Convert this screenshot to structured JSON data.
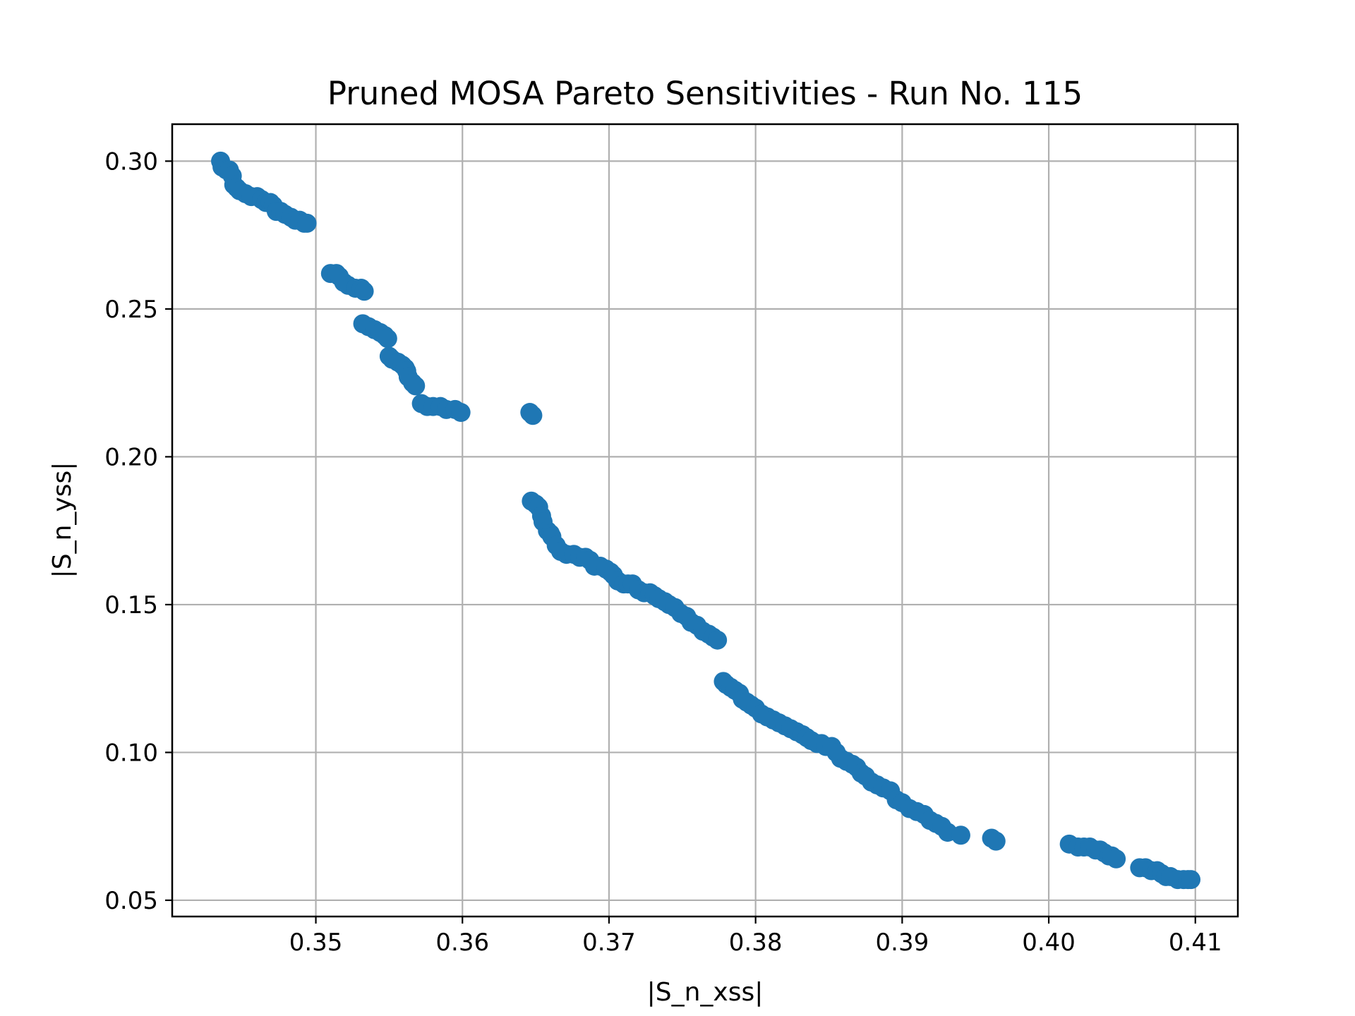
{
  "chart_data": {
    "type": "scatter",
    "title": "Pruned MOSA Pareto Sensitivities - Run No. 115",
    "xlabel": "|S_n_xss|",
    "ylabel": "|S_n_yss|",
    "xlim": [
      0.3402,
      0.4129
    ],
    "ylim": [
      0.0445,
      0.3125
    ],
    "xticks": [
      0.35,
      0.36,
      0.37,
      0.38,
      0.39,
      0.4,
      0.41
    ],
    "xtick_labels": [
      "0.35",
      "0.36",
      "0.37",
      "0.38",
      "0.39",
      "0.40",
      "0.41"
    ],
    "yticks": [
      0.05,
      0.1,
      0.15,
      0.2,
      0.25,
      0.3
    ],
    "ytick_labels": [
      "0.05",
      "0.10",
      "0.15",
      "0.20",
      "0.25",
      "0.30"
    ],
    "grid": true,
    "marker_color": "#1f77b4",
    "series": [
      {
        "x": [
          0.3435,
          0.3436,
          0.3439,
          0.3441,
          0.3443,
          0.3444,
          0.3446,
          0.3448,
          0.3452,
          0.3456,
          0.346,
          0.3463,
          0.3466,
          0.3469,
          0.3471,
          0.3473,
          0.3476,
          0.3479,
          0.3483,
          0.3486,
          0.3489,
          0.3492,
          0.3494,
          0.351,
          0.3514,
          0.3516,
          0.3519,
          0.3522,
          0.3527,
          0.3531,
          0.3533,
          0.3532,
          0.3536,
          0.354,
          0.3544,
          0.3547,
          0.3549,
          0.355,
          0.3552,
          0.3556,
          0.3559,
          0.3561,
          0.3562,
          0.3563,
          0.3566,
          0.3568,
          0.3572,
          0.3576,
          0.358,
          0.3585,
          0.3589,
          0.3595,
          0.3599,
          0.3646,
          0.3648,
          0.3647,
          0.365,
          0.3652,
          0.3654,
          0.3655,
          0.3658,
          0.366,
          0.3661,
          0.3664,
          0.3667,
          0.3671,
          0.3676,
          0.368,
          0.3684,
          0.3687,
          0.369,
          0.3694,
          0.3698,
          0.3701,
          0.3703,
          0.3706,
          0.371,
          0.3713,
          0.3716,
          0.372,
          0.3724,
          0.3728,
          0.3731,
          0.3734,
          0.3738,
          0.3741,
          0.3745,
          0.3749,
          0.3753,
          0.3756,
          0.376,
          0.3764,
          0.3768,
          0.3771,
          0.3774,
          0.3778,
          0.378,
          0.3783,
          0.3786,
          0.3789,
          0.3791,
          0.3794,
          0.3797,
          0.38,
          0.3804,
          0.3808,
          0.3812,
          0.3816,
          0.382,
          0.3824,
          0.3828,
          0.3832,
          0.3835,
          0.3838,
          0.3842,
          0.3845,
          0.3848,
          0.3852,
          0.3855,
          0.3858,
          0.3862,
          0.3866,
          0.3869,
          0.3872,
          0.3875,
          0.3879,
          0.3883,
          0.3887,
          0.3892,
          0.3896,
          0.39,
          0.3905,
          0.391,
          0.3915,
          0.3919,
          0.3923,
          0.3927,
          0.3931,
          0.394,
          0.3961,
          0.3964,
          0.4014,
          0.402,
          0.4024,
          0.4028,
          0.4032,
          0.4035,
          0.4038,
          0.4041,
          0.4043,
          0.4046,
          0.4062,
          0.4066,
          0.407,
          0.4074,
          0.4077,
          0.408,
          0.4083,
          0.4088,
          0.4092,
          0.4095,
          0.4097
        ]
      },
      {
        "y": [
          0.3,
          0.298,
          0.297,
          0.297,
          0.295,
          0.292,
          0.291,
          0.29,
          0.289,
          0.288,
          0.288,
          0.287,
          0.286,
          0.286,
          0.285,
          0.283,
          0.283,
          0.282,
          0.281,
          0.28,
          0.28,
          0.279,
          0.279,
          0.262,
          0.262,
          0.261,
          0.259,
          0.258,
          0.257,
          0.257,
          0.256,
          0.245,
          0.244,
          0.243,
          0.242,
          0.241,
          0.24,
          0.234,
          0.233,
          0.232,
          0.231,
          0.23,
          0.229,
          0.227,
          0.225,
          0.224,
          0.218,
          0.217,
          0.217,
          0.217,
          0.216,
          0.216,
          0.215,
          0.215,
          0.214,
          0.185,
          0.184,
          0.183,
          0.18,
          0.178,
          0.175,
          0.174,
          0.173,
          0.17,
          0.168,
          0.167,
          0.167,
          0.166,
          0.166,
          0.165,
          0.163,
          0.163,
          0.162,
          0.161,
          0.16,
          0.158,
          0.157,
          0.157,
          0.157,
          0.155,
          0.154,
          0.154,
          0.153,
          0.152,
          0.151,
          0.15,
          0.149,
          0.147,
          0.146,
          0.144,
          0.143,
          0.141,
          0.14,
          0.139,
          0.138,
          0.124,
          0.123,
          0.122,
          0.121,
          0.12,
          0.118,
          0.117,
          0.116,
          0.115,
          0.113,
          0.112,
          0.111,
          0.11,
          0.109,
          0.108,
          0.107,
          0.106,
          0.105,
          0.104,
          0.103,
          0.103,
          0.102,
          0.102,
          0.1,
          0.098,
          0.097,
          0.096,
          0.095,
          0.093,
          0.092,
          0.09,
          0.089,
          0.088,
          0.087,
          0.084,
          0.083,
          0.081,
          0.08,
          0.079,
          0.077,
          0.076,
          0.075,
          0.073,
          0.072,
          0.071,
          0.07,
          0.069,
          0.068,
          0.068,
          0.068,
          0.067,
          0.067,
          0.066,
          0.065,
          0.065,
          0.064,
          0.061,
          0.061,
          0.06,
          0.06,
          0.059,
          0.058,
          0.058,
          0.057,
          0.057,
          0.057,
          0.057
        ]
      }
    ]
  }
}
